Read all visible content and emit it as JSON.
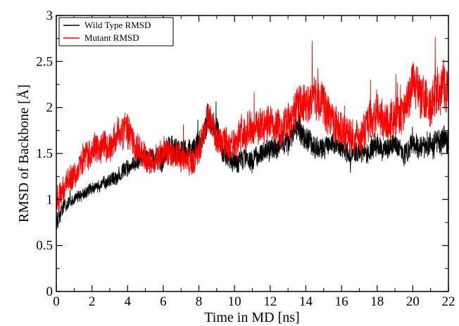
{
  "chart_data": {
    "type": "line",
    "xlabel": "Time in MD [ns]",
    "ylabel": "RMSD of Backbone [Å]",
    "xlim": [
      0,
      22
    ],
    "ylim": [
      0,
      3
    ],
    "xticks": [
      0,
      2,
      4,
      6,
      8,
      10,
      12,
      14,
      16,
      18,
      20,
      22
    ],
    "yticks": [
      0,
      0.5,
      1,
      1.5,
      2,
      2.5,
      3
    ],
    "xtick_labels": [
      "0",
      "2",
      "4",
      "6",
      "8",
      "10",
      "12",
      "14",
      "16",
      "18",
      "20",
      "22"
    ],
    "ytick_labels": [
      "0",
      "0.5",
      "1",
      "1.5",
      "2",
      "2.5",
      "3"
    ],
    "grid": false,
    "legend_position": "top-left",
    "series": [
      {
        "name": "Wild Type RMSD",
        "color": "#000000",
        "x": [
          0,
          0.5,
          1,
          1.5,
          2,
          2.5,
          3,
          3.5,
          4,
          4.5,
          5,
          5.5,
          6,
          6.5,
          7,
          7.5,
          8,
          8.5,
          9,
          9.5,
          10,
          10.5,
          11,
          11.5,
          12,
          12.5,
          13,
          13.5,
          14,
          14.5,
          15,
          15.5,
          16,
          16.5,
          17,
          17.5,
          18,
          18.5,
          19,
          19.5,
          20,
          20.5,
          21,
          21.5,
          22
        ],
        "y": [
          0.75,
          0.95,
          1.0,
          1.05,
          1.1,
          1.15,
          1.2,
          1.28,
          1.35,
          1.4,
          1.45,
          1.45,
          1.5,
          1.55,
          1.5,
          1.5,
          1.6,
          1.9,
          1.75,
          1.45,
          1.4,
          1.45,
          1.45,
          1.5,
          1.55,
          1.6,
          1.65,
          1.8,
          1.65,
          1.55,
          1.55,
          1.6,
          1.55,
          1.5,
          1.55,
          1.5,
          1.6,
          1.55,
          1.6,
          1.5,
          1.6,
          1.55,
          1.6,
          1.65,
          1.65
        ],
        "amplitude": [
          0.12,
          0.1,
          0.08,
          0.08,
          0.08,
          0.08,
          0.1,
          0.1,
          0.12,
          0.12,
          0.12,
          0.15,
          0.2,
          0.22,
          0.18,
          0.18,
          0.2,
          0.18,
          0.18,
          0.15,
          0.15,
          0.15,
          0.15,
          0.15,
          0.16,
          0.16,
          0.18,
          0.2,
          0.18,
          0.16,
          0.16,
          0.16,
          0.15,
          0.15,
          0.15,
          0.15,
          0.16,
          0.15,
          0.16,
          0.16,
          0.16,
          0.16,
          0.18,
          0.18,
          0.18
        ]
      },
      {
        "name": "Mutant RMSD",
        "color": "#ff0000",
        "x": [
          0,
          0.5,
          1,
          1.5,
          2,
          2.5,
          3,
          3.5,
          4,
          4.5,
          5,
          5.5,
          6,
          6.5,
          7,
          7.5,
          8,
          8.5,
          9,
          9.5,
          10,
          10.5,
          11,
          11.5,
          12,
          12.5,
          13,
          13.5,
          14,
          14.5,
          15,
          15.5,
          16,
          16.5,
          17,
          17.5,
          18,
          18.5,
          19,
          19.5,
          20,
          20.5,
          21,
          21.5,
          22
        ],
        "y": [
          0.95,
          1.15,
          1.3,
          1.45,
          1.55,
          1.55,
          1.6,
          1.7,
          1.75,
          1.55,
          1.45,
          1.45,
          1.5,
          1.5,
          1.45,
          1.4,
          1.5,
          1.85,
          1.65,
          1.6,
          1.6,
          1.7,
          1.75,
          1.8,
          1.85,
          1.8,
          1.8,
          2.0,
          2.05,
          2.1,
          2.0,
          1.9,
          1.75,
          1.7,
          1.65,
          1.8,
          1.95,
          1.85,
          1.9,
          1.9,
          2.3,
          2.1,
          2.0,
          2.25,
          2.15
        ],
        "amplitude": [
          0.25,
          0.18,
          0.2,
          0.2,
          0.2,
          0.2,
          0.22,
          0.22,
          0.25,
          0.2,
          0.2,
          0.2,
          0.2,
          0.2,
          0.2,
          0.18,
          0.2,
          0.22,
          0.2,
          0.22,
          0.22,
          0.25,
          0.25,
          0.25,
          0.25,
          0.25,
          0.25,
          0.3,
          0.3,
          0.3,
          0.3,
          0.28,
          0.25,
          0.25,
          0.25,
          0.28,
          0.3,
          0.28,
          0.28,
          0.28,
          0.3,
          0.3,
          0.3,
          0.35,
          0.35
        ]
      }
    ]
  }
}
